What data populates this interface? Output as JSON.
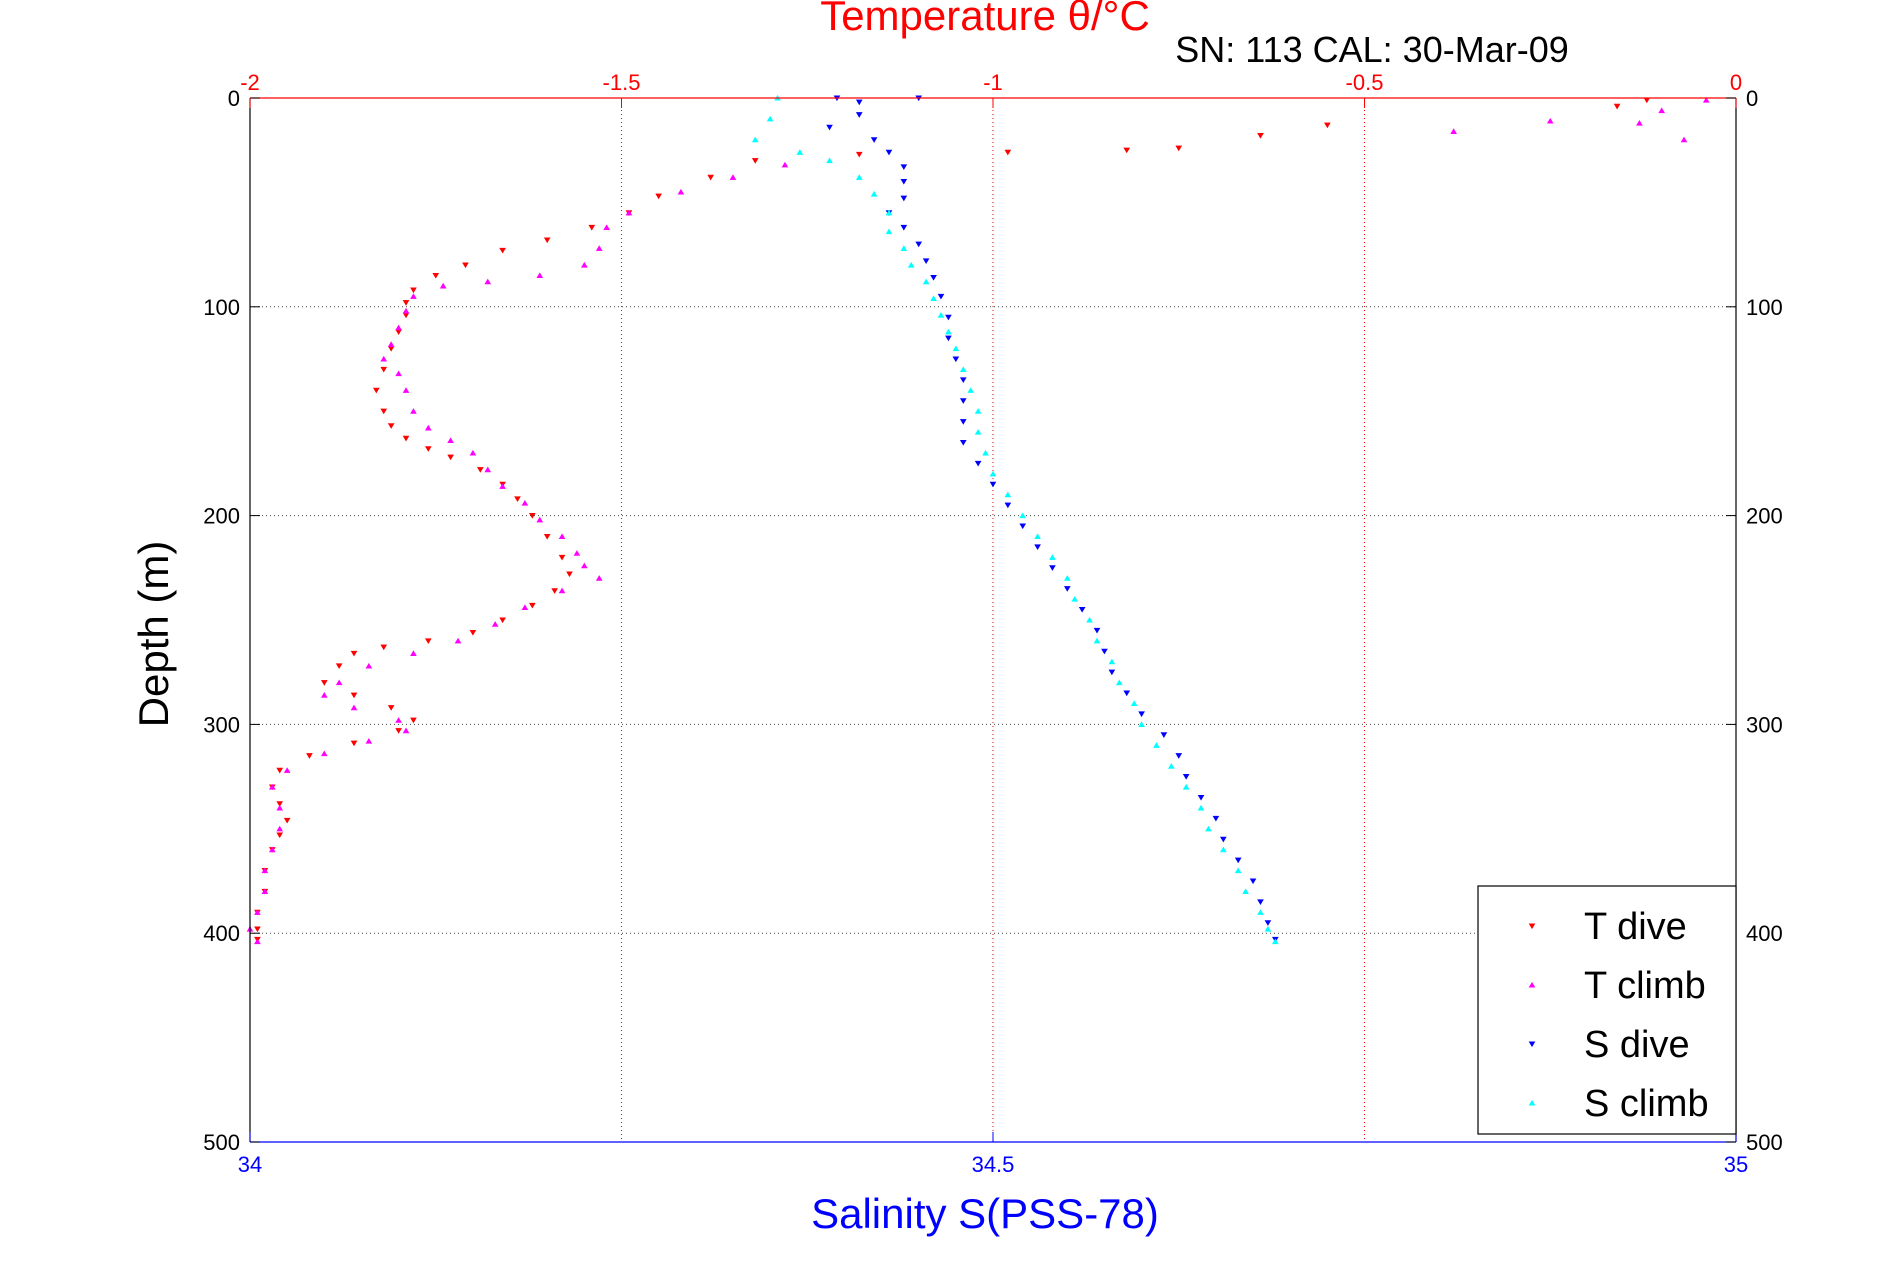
{
  "chart_data": {
    "type": "scatter",
    "title": "Temperature θ/°C",
    "subtitle": "SN: 113  CAL: 30-Mar-09",
    "xlabel": "Salinity S(PSS-78)",
    "ylabel": "Depth (m)",
    "grid": true,
    "legend_position": "bottom-right",
    "y_axis": {
      "min": 0,
      "max": 500,
      "reversed": true,
      "ticks": [
        "0",
        "100",
        "200",
        "300",
        "400",
        "500"
      ]
    },
    "top_axis": {
      "label": "Temperature θ/°C",
      "min": -2,
      "max": 0,
      "ticks": [
        "-2",
        "-1.5",
        "-1",
        "-0.5",
        "0"
      ],
      "color": "#ff0000"
    },
    "bottom_axis": {
      "label": "Salinity S(PSS-78)",
      "min": 34,
      "max": 35,
      "ticks": [
        "34",
        "34.5",
        "35"
      ],
      "color": "#0000ff"
    },
    "series": [
      {
        "name": "T dive",
        "axis": "temperature",
        "color": "#ff0000",
        "marker": "triangle-down",
        "points": [
          [
            -0.12,
            1
          ],
          [
            -0.16,
            4
          ],
          [
            -0.55,
            13
          ],
          [
            -0.64,
            18
          ],
          [
            -0.75,
            24
          ],
          [
            -0.82,
            25
          ],
          [
            -0.98,
            26
          ],
          [
            -1.18,
            27
          ],
          [
            -1.32,
            30
          ],
          [
            -1.38,
            38
          ],
          [
            -1.45,
            47
          ],
          [
            -1.49,
            55
          ],
          [
            -1.54,
            62
          ],
          [
            -1.6,
            68
          ],
          [
            -1.66,
            73
          ],
          [
            -1.71,
            80
          ],
          [
            -1.75,
            85
          ],
          [
            -1.78,
            92
          ],
          [
            -1.79,
            98
          ],
          [
            -1.79,
            104
          ],
          [
            -1.8,
            112
          ],
          [
            -1.81,
            120
          ],
          [
            -1.82,
            130
          ],
          [
            -1.83,
            140
          ],
          [
            -1.82,
            150
          ],
          [
            -1.81,
            157
          ],
          [
            -1.79,
            163
          ],
          [
            -1.76,
            168
          ],
          [
            -1.73,
            172
          ],
          [
            -1.69,
            178
          ],
          [
            -1.66,
            185
          ],
          [
            -1.64,
            192
          ],
          [
            -1.62,
            200
          ],
          [
            -1.6,
            210
          ],
          [
            -1.58,
            220
          ],
          [
            -1.57,
            228
          ],
          [
            -1.59,
            236
          ],
          [
            -1.62,
            243
          ],
          [
            -1.66,
            250
          ],
          [
            -1.7,
            256
          ],
          [
            -1.76,
            260
          ],
          [
            -1.82,
            263
          ],
          [
            -1.86,
            266
          ],
          [
            -1.88,
            272
          ],
          [
            -1.9,
            280
          ],
          [
            -1.86,
            286
          ],
          [
            -1.81,
            292
          ],
          [
            -1.78,
            298
          ],
          [
            -1.8,
            303
          ],
          [
            -1.86,
            309
          ],
          [
            -1.92,
            315
          ],
          [
            -1.96,
            322
          ],
          [
            -1.97,
            330
          ],
          [
            -1.96,
            338
          ],
          [
            -1.95,
            346
          ],
          [
            -1.96,
            353
          ],
          [
            -1.97,
            360
          ],
          [
            -1.98,
            370
          ],
          [
            -1.98,
            380
          ],
          [
            -1.99,
            390
          ],
          [
            -1.99,
            398
          ],
          [
            -1.99,
            403
          ]
        ]
      },
      {
        "name": "T climb",
        "axis": "temperature",
        "color": "#ff00ff",
        "marker": "triangle-up",
        "points": [
          [
            -0.04,
            1
          ],
          [
            -0.1,
            6
          ],
          [
            -0.13,
            12
          ],
          [
            -0.07,
            20
          ],
          [
            -0.25,
            11
          ],
          [
            -0.38,
            16
          ],
          [
            -1.28,
            32
          ],
          [
            -1.35,
            38
          ],
          [
            -1.42,
            45
          ],
          [
            -1.49,
            55
          ],
          [
            -1.52,
            62
          ],
          [
            -1.53,
            72
          ],
          [
            -1.55,
            80
          ],
          [
            -1.61,
            85
          ],
          [
            -1.68,
            88
          ],
          [
            -1.74,
            90
          ],
          [
            -1.78,
            95
          ],
          [
            -1.79,
            102
          ],
          [
            -1.8,
            110
          ],
          [
            -1.81,
            118
          ],
          [
            -1.82,
            125
          ],
          [
            -1.8,
            132
          ],
          [
            -1.79,
            140
          ],
          [
            -1.78,
            150
          ],
          [
            -1.76,
            158
          ],
          [
            -1.73,
            164
          ],
          [
            -1.7,
            170
          ],
          [
            -1.68,
            178
          ],
          [
            -1.66,
            186
          ],
          [
            -1.63,
            194
          ],
          [
            -1.61,
            202
          ],
          [
            -1.58,
            210
          ],
          [
            -1.56,
            218
          ],
          [
            -1.55,
            224
          ],
          [
            -1.53,
            230
          ],
          [
            -1.58,
            236
          ],
          [
            -1.63,
            244
          ],
          [
            -1.67,
            252
          ],
          [
            -1.72,
            260
          ],
          [
            -1.78,
            266
          ],
          [
            -1.84,
            272
          ],
          [
            -1.88,
            280
          ],
          [
            -1.9,
            286
          ],
          [
            -1.86,
            292
          ],
          [
            -1.8,
            298
          ],
          [
            -1.79,
            303
          ],
          [
            -1.84,
            308
          ],
          [
            -1.9,
            314
          ],
          [
            -1.95,
            322
          ],
          [
            -1.97,
            330
          ],
          [
            -1.96,
            340
          ],
          [
            -1.96,
            350
          ],
          [
            -1.97,
            360
          ],
          [
            -1.98,
            370
          ],
          [
            -1.98,
            380
          ],
          [
            -1.99,
            390
          ],
          [
            -2.0,
            398
          ],
          [
            -1.99,
            404
          ]
        ]
      },
      {
        "name": "S dive",
        "axis": "salinity",
        "color": "#0000ff",
        "marker": "triangle-down",
        "points": [
          [
            34.395,
            0
          ],
          [
            34.41,
            2
          ],
          [
            34.45,
            0
          ],
          [
            34.41,
            8
          ],
          [
            34.39,
            14
          ],
          [
            34.42,
            20
          ],
          [
            34.43,
            26
          ],
          [
            34.44,
            33
          ],
          [
            34.44,
            40
          ],
          [
            34.44,
            48
          ],
          [
            34.43,
            55
          ],
          [
            34.44,
            62
          ],
          [
            34.45,
            70
          ],
          [
            34.455,
            78
          ],
          [
            34.46,
            86
          ],
          [
            34.465,
            95
          ],
          [
            34.47,
            105
          ],
          [
            34.47,
            115
          ],
          [
            34.475,
            125
          ],
          [
            34.48,
            135
          ],
          [
            34.48,
            145
          ],
          [
            34.48,
            155
          ],
          [
            34.48,
            165
          ],
          [
            34.49,
            175
          ],
          [
            34.5,
            185
          ],
          [
            34.51,
            195
          ],
          [
            34.52,
            205
          ],
          [
            34.53,
            215
          ],
          [
            34.54,
            225
          ],
          [
            34.55,
            235
          ],
          [
            34.56,
            245
          ],
          [
            34.57,
            255
          ],
          [
            34.575,
            265
          ],
          [
            34.58,
            275
          ],
          [
            34.59,
            285
          ],
          [
            34.6,
            295
          ],
          [
            34.615,
            305
          ],
          [
            34.625,
            315
          ],
          [
            34.63,
            325
          ],
          [
            34.64,
            335
          ],
          [
            34.65,
            345
          ],
          [
            34.655,
            355
          ],
          [
            34.665,
            365
          ],
          [
            34.675,
            375
          ],
          [
            34.68,
            385
          ],
          [
            34.685,
            395
          ],
          [
            34.69,
            403
          ]
        ]
      },
      {
        "name": "S climb",
        "axis": "salinity",
        "color": "#00ffff",
        "marker": "triangle-up",
        "points": [
          [
            34.355,
            0
          ],
          [
            34.35,
            10
          ],
          [
            34.34,
            20
          ],
          [
            34.37,
            26
          ],
          [
            34.39,
            30
          ],
          [
            34.41,
            38
          ],
          [
            34.42,
            46
          ],
          [
            34.43,
            55
          ],
          [
            34.43,
            64
          ],
          [
            34.44,
            72
          ],
          [
            34.445,
            80
          ],
          [
            34.455,
            88
          ],
          [
            34.46,
            96
          ],
          [
            34.465,
            104
          ],
          [
            34.47,
            112
          ],
          [
            34.475,
            120
          ],
          [
            34.48,
            130
          ],
          [
            34.485,
            140
          ],
          [
            34.49,
            150
          ],
          [
            34.49,
            160
          ],
          [
            34.495,
            170
          ],
          [
            34.5,
            180
          ],
          [
            34.51,
            190
          ],
          [
            34.52,
            200
          ],
          [
            34.53,
            210
          ],
          [
            34.54,
            220
          ],
          [
            34.55,
            230
          ],
          [
            34.555,
            240
          ],
          [
            34.565,
            250
          ],
          [
            34.57,
            260
          ],
          [
            34.58,
            270
          ],
          [
            34.585,
            280
          ],
          [
            34.595,
            290
          ],
          [
            34.6,
            300
          ],
          [
            34.61,
            310
          ],
          [
            34.62,
            320
          ],
          [
            34.63,
            330
          ],
          [
            34.64,
            340
          ],
          [
            34.645,
            350
          ],
          [
            34.655,
            360
          ],
          [
            34.665,
            370
          ],
          [
            34.67,
            380
          ],
          [
            34.68,
            390
          ],
          [
            34.685,
            398
          ],
          [
            34.69,
            404
          ]
        ]
      }
    ]
  }
}
